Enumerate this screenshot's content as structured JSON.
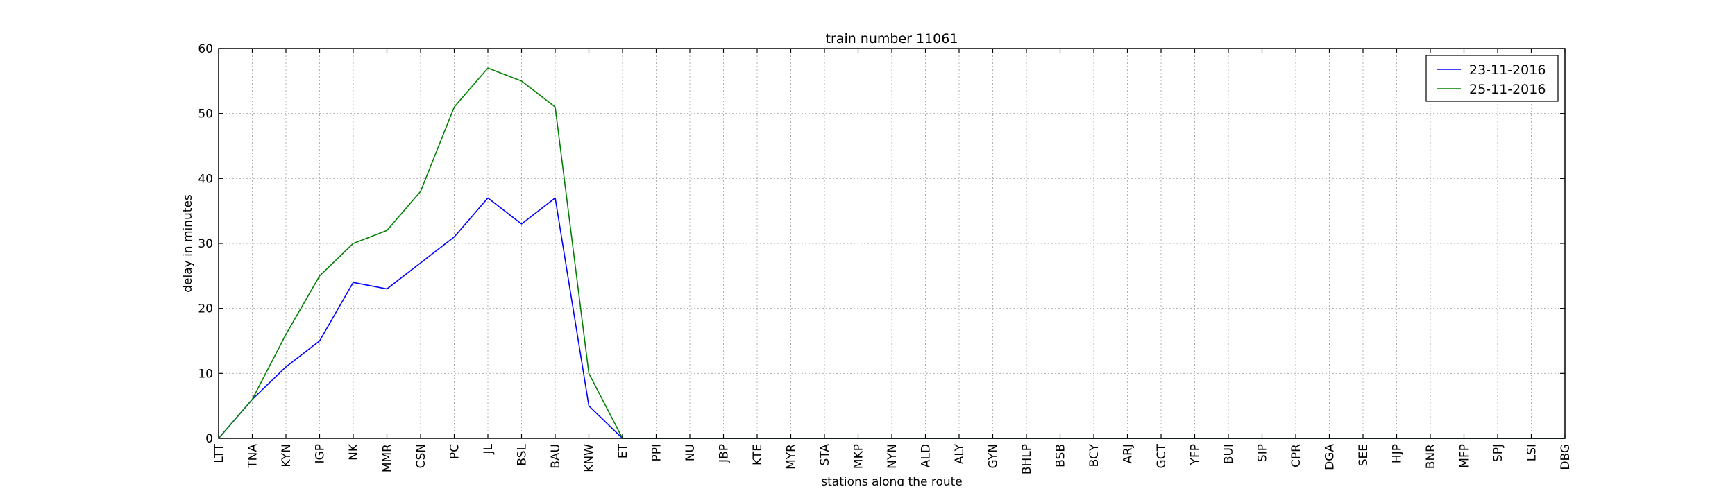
{
  "chart_data": {
    "type": "line",
    "title": "train number 11061",
    "xlabel": "stations along the route",
    "ylabel": "delay in minutes",
    "ylim": [
      0,
      60
    ],
    "yticks": [
      0,
      10,
      20,
      30,
      40,
      50,
      60
    ],
    "grid": true,
    "legend_position": "top-right",
    "categories": [
      "LTT",
      "TNA",
      "KYN",
      "IGP",
      "NK",
      "MMR",
      "CSN",
      "PC",
      "JL",
      "BSL",
      "BAU",
      "KNW",
      "ET",
      "PPI",
      "NU",
      "JBP",
      "KTE",
      "MYR",
      "STA",
      "MKP",
      "NYN",
      "ALD",
      "ALY",
      "GYN",
      "BHLP",
      "BSB",
      "BCY",
      "ARJ",
      "GCT",
      "YFP",
      "BUI",
      "SIP",
      "CPR",
      "DGA",
      "SEE",
      "HJP",
      "BNR",
      "MFP",
      "SPJ",
      "LSI",
      "DBG"
    ],
    "series": [
      {
        "name": "23-11-2016",
        "color": "#0000ff",
        "values": [
          0,
          6,
          11,
          15,
          24,
          23,
          27,
          31,
          37,
          33,
          37,
          5,
          0,
          0,
          0,
          0,
          0,
          0,
          0,
          0,
          0,
          0,
          0,
          0,
          0,
          0,
          0,
          0,
          0,
          0,
          0,
          0,
          0,
          0,
          0,
          0,
          0,
          0,
          0,
          0,
          0
        ]
      },
      {
        "name": "25-11-2016",
        "color": "#008000",
        "values": [
          0,
          6,
          16,
          25,
          30,
          32,
          38,
          51,
          57,
          55,
          51,
          10,
          0,
          0,
          0,
          0,
          0,
          0,
          0,
          0,
          0,
          0,
          0,
          0,
          0,
          0,
          0,
          0,
          0,
          0,
          0,
          0,
          0,
          0,
          0,
          0,
          0,
          0,
          0,
          0,
          0
        ]
      }
    ]
  }
}
